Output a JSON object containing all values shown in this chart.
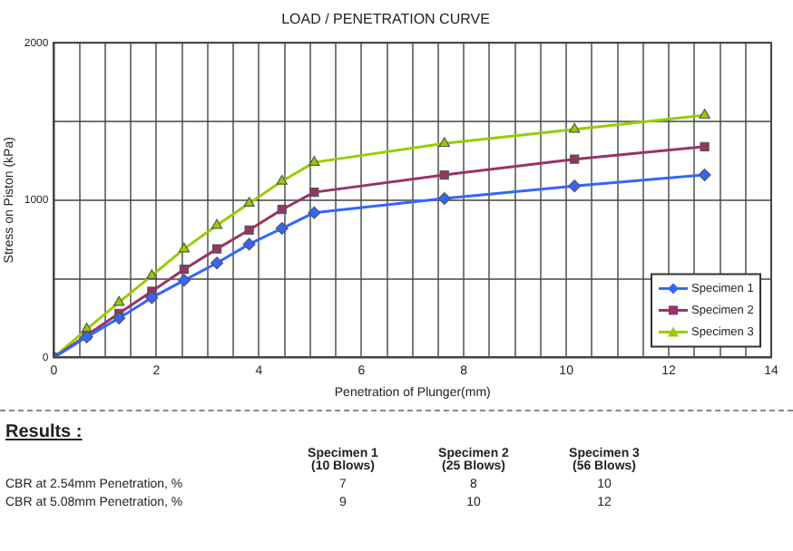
{
  "chart_data": {
    "type": "line",
    "title": "LOAD / PENETRATION CURVE",
    "xlabel": "Penetration of Plunger(mm)",
    "ylabel": "Stress on Piston (kPa)",
    "x": [
      0,
      0.64,
      1.27,
      1.91,
      2.54,
      3.18,
      3.81,
      4.45,
      5.08,
      7.62,
      10.16,
      12.7
    ],
    "series": [
      {
        "name": "Specimen 1",
        "color": "#3366ff",
        "marker": "diamond",
        "values": [
          0,
          130,
          250,
          380,
          490,
          600,
          720,
          820,
          920,
          1010,
          1090,
          1160
        ]
      },
      {
        "name": "Specimen 2",
        "color": "#993366",
        "marker": "square",
        "values": [
          0,
          140,
          280,
          420,
          560,
          690,
          810,
          940,
          1050,
          1160,
          1260,
          1340
        ]
      },
      {
        "name": "Specimen 3",
        "color": "#99cc00",
        "marker": "triangle",
        "values": [
          0,
          180,
          350,
          520,
          690,
          840,
          980,
          1120,
          1240,
          1360,
          1450,
          1540
        ]
      }
    ],
    "xlim": [
      0,
      14
    ],
    "xticks": [
      0,
      {
        "value": 0.5,
        "label": null
      },
      {
        "value": 1,
        "label": null
      },
      {
        "value": 1.5,
        "label": null
      },
      2,
      {
        "value": 2.5,
        "label": null
      },
      {
        "value": 3,
        "label": null
      },
      {
        "value": 3.5,
        "label": null
      },
      4,
      {
        "value": 4.5,
        "label": null
      },
      {
        "value": 5,
        "label": null
      },
      {
        "value": 5.5,
        "label": null
      },
      6,
      {
        "value": 6.5,
        "label": null
      },
      {
        "value": 7,
        "label": null
      },
      {
        "value": 7.5,
        "label": null
      },
      8,
      {
        "value": 8.5,
        "label": null
      },
      {
        "value": 9,
        "label": null
      },
      {
        "value": 9.5,
        "label": null
      },
      10,
      {
        "value": 10.5,
        "label": null
      },
      {
        "value": 11,
        "label": null
      },
      {
        "value": 11.5,
        "label": null
      },
      12,
      {
        "value": 12.5,
        "label": null
      },
      {
        "value": 13,
        "label": null
      },
      {
        "value": 13.5,
        "label": null
      },
      14
    ],
    "ylim": [
      0,
      2000
    ],
    "yticks": [
      0,
      {
        "value": 500,
        "label": null
      },
      1000,
      {
        "value": 1500,
        "label": null
      },
      2000
    ],
    "grid": true,
    "legend": "bottom right",
    "line_style": "solid",
    "annotations": [
      "Results :",
      "Specimen 1\n(10 Blows)",
      "Specimen 2\n(25 Blows)",
      "Specimen 3\n(56 Blows)",
      "CBR at 2.54mm Penetration, %",
      "7",
      "8",
      "10",
      "CBR at 5.08mm Penetration, %",
      "9",
      "10",
      "12"
    ]
  }
}
